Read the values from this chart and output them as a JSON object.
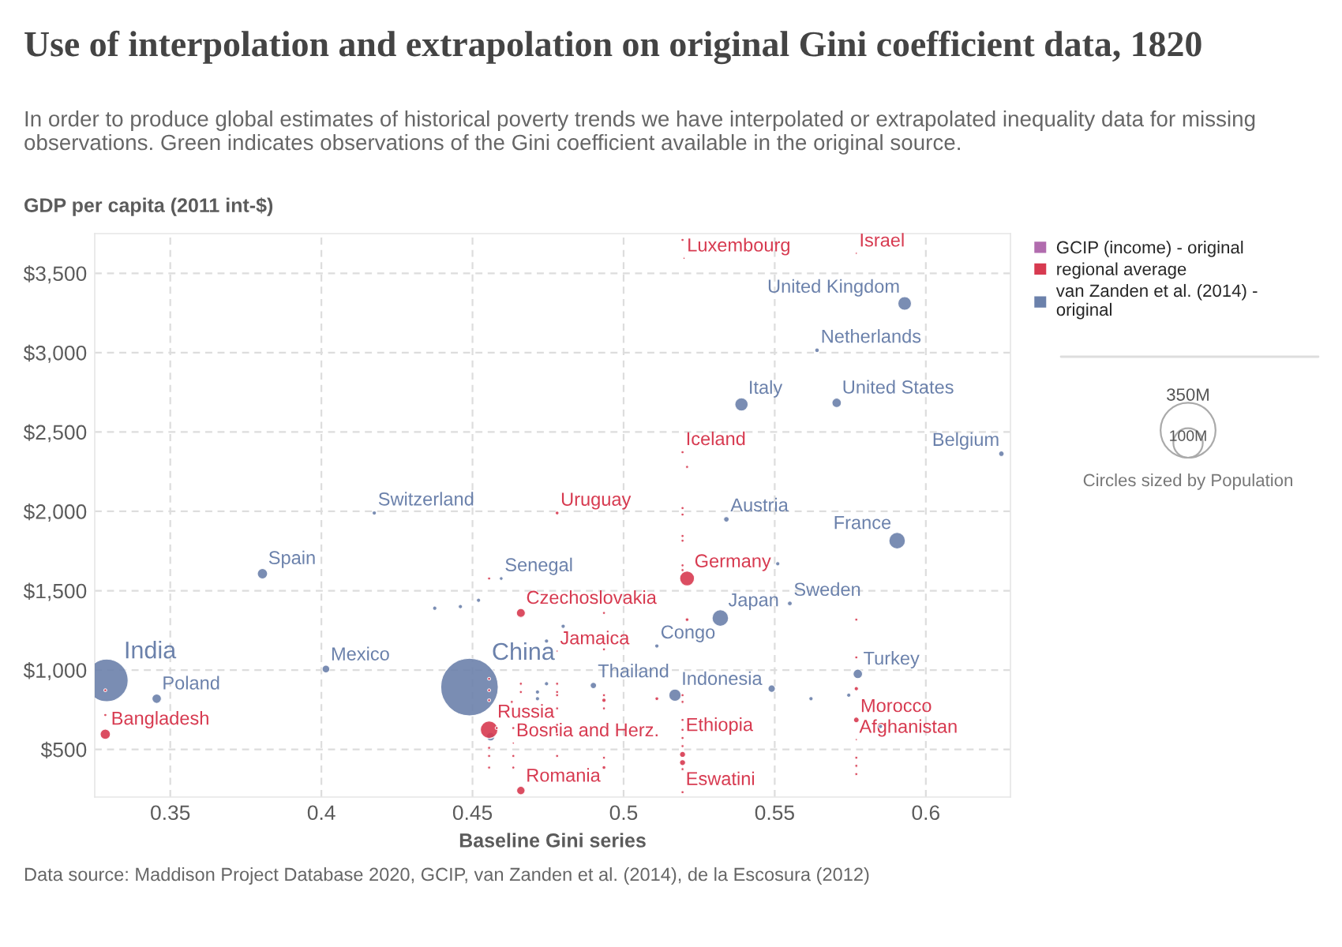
{
  "chart_data": {
    "type": "bubble",
    "title": "Use of interpolation and extrapolation on original Gini coefficient data, 1820",
    "subtitle": "In order to produce global estimates of historical poverty trends we have interpolated or extrapolated inequality data for missing observations. Green indicates observations of the Gini coefficient available in the original source.",
    "xlabel": "Baseline Gini series",
    "ylabel": "GDP per capita (2011 int-$)",
    "annotations": [
      "Circles sized by Population",
      "Data source: Maddison Project Database 2020, GCIP, van Zanden et al. (2014), de la Escosura (2012)"
    ],
    "xlim": [
      0.325,
      0.628
    ],
    "ylim": [
      200,
      3750
    ],
    "xticks": [
      0.35,
      0.4,
      0.45,
      0.5,
      0.55,
      0.6
    ],
    "yticks": [
      {
        "value": 500,
        "label": "$500"
      },
      {
        "value": 1000,
        "label": "$1,000"
      },
      {
        "value": 1500,
        "label": "$1,500"
      },
      {
        "value": 2000,
        "label": "$2,000"
      },
      {
        "value": 2500,
        "label": "$2,500"
      },
      {
        "value": 3000,
        "label": "$3,000"
      },
      {
        "value": 3500,
        "label": "$3,500"
      }
    ],
    "grid": true,
    "legend": "right",
    "size_legend": [
      {
        "value": 100,
        "label": "100M"
      },
      {
        "value": 350,
        "label": "350M"
      }
    ],
    "series": [
      {
        "name": "GCIP (income) - original",
        "color": "#b16cae"
      },
      {
        "name": "regional average",
        "color": "#d73a50",
        "x": [
          0.5195,
          0.52,
          0.577,
          0.5195,
          0.521,
          0.478,
          0.5195,
          0.5195,
          0.5195,
          0.5195,
          0.5195,
          0.5195,
          0.521,
          0.521,
          0.5195,
          0.5195,
          0.5195,
          0.5195,
          0.5195,
          0.5195,
          0.5195,
          0.5195,
          0.5195,
          0.5195,
          0.466,
          0.478,
          0.4935,
          0.4935,
          0.478,
          0.478,
          0.478,
          0.478,
          0.478,
          0.478,
          0.478,
          0.466,
          0.466,
          0.466,
          0.463,
          0.4635,
          0.4635,
          0.4635,
          0.4635,
          0.458,
          0.4935,
          0.4935,
          0.4935,
          0.4935,
          0.4935,
          0.511,
          0.577,
          0.577,
          0.577,
          0.577,
          0.577,
          0.577,
          0.577,
          0.577,
          0.3285,
          0.3285,
          0.3285,
          0.4555,
          0.4555,
          0.4555,
          0.4555,
          0.4555,
          0.4555,
          0.4555,
          0.4555
        ],
        "values": [
          3710,
          3595,
          3626,
          2373,
          2280,
          1990,
          2021,
          1980,
          1845,
          1815,
          1660,
          1630,
          1577,
          1318,
          842,
          800,
          686,
          624,
          572,
          521,
          469,
          417,
          376,
          231,
          1360,
          1120,
          1360,
          1131,
          914,
          862,
          842,
          759,
          655,
          593,
          459,
          914,
          862,
          241,
          800,
          635,
          540,
          459,
          386,
          635,
          842,
          810,
          759,
          448,
          386,
          820,
          1318,
          1080,
          883,
          686,
          562,
          448,
          397,
          345,
          873,
          717,
          596,
          1577,
          945,
          873,
          810,
          624,
          510,
          459,
          386
        ],
        "sizes": [
          1,
          0.5,
          0.5,
          1,
          1,
          1.5,
          1,
          1,
          1,
          1,
          1,
          1,
          25,
          1.5,
          1,
          1,
          1,
          1,
          1,
          1,
          4,
          4,
          1,
          1,
          9,
          0.5,
          1,
          1,
          1,
          1,
          1,
          1,
          1,
          1,
          1,
          1,
          1,
          8,
          1,
          1,
          0.5,
          1,
          1,
          1,
          1,
          2,
          1,
          1,
          1.5,
          1.5,
          1,
          1,
          2,
          3.5,
          0.5,
          1,
          1,
          1,
          1,
          1,
          12,
          1,
          1,
          1,
          1,
          35,
          1,
          1,
          1
        ],
        "value_labels": [
          null,
          "Luxembourg",
          "Israel",
          "Iceland",
          null,
          "Uruguay",
          null,
          null,
          null,
          null,
          null,
          null,
          "Germany",
          null,
          null,
          null,
          null,
          null,
          "Ethiopia",
          null,
          null,
          null,
          null,
          "Eswatini",
          "Czechoslovakia",
          "Jamaica",
          null,
          null,
          null,
          null,
          null,
          null,
          null,
          null,
          null,
          null,
          null,
          "Romania",
          null,
          null,
          "Bosnia and Herz.",
          null,
          null,
          null,
          null,
          null,
          null,
          null,
          null,
          null,
          null,
          null,
          null,
          "Morocco",
          "Afghanistan",
          null,
          null,
          null,
          null,
          null,
          "Bangladesh",
          null,
          null,
          null,
          null,
          "Russia",
          null,
          null,
          null
        ]
      },
      {
        "name": "van Zanden et al. (2014) - original",
        "color": "#6b81ab",
        "x": [
          0.4175,
          0.593,
          0.564,
          0.539,
          0.5705,
          0.625,
          0.534,
          0.5905,
          0.3805,
          0.329,
          0.3455,
          0.4015,
          0.4375,
          0.446,
          0.452,
          0.4595,
          0.449,
          0.456,
          0.551,
          0.555,
          0.532,
          0.511,
          0.48,
          0.4745,
          0.49,
          0.4745,
          0.4715,
          0.4715,
          0.517,
          0.549,
          0.562,
          0.5745,
          0.5775,
          0.585
        ],
        "values": [
          1990,
          3310,
          3015,
          2674,
          2684,
          2363,
          1950,
          1815,
          1607,
          935,
          820,
          1007,
          1390,
          1400,
          1440,
          1577,
          893,
          580,
          1670,
          1420,
          1328,
          1152,
          1276,
          1183,
          903,
          914,
          862,
          820,
          842,
          883,
          820,
          842,
          976,
          645
        ],
        "sizes": [
          2,
          21,
          2.3,
          20,
          10,
          3.4,
          3.4,
          31,
          12,
          209,
          10,
          6.6,
          2,
          2,
          2,
          1.5,
          381,
          8,
          2,
          2.5,
          31,
          2,
          2,
          2,
          4.5,
          2,
          2,
          2,
          17,
          6,
          2,
          2,
          10,
          2
        ],
        "value_labels": [
          "Switzerland",
          "United Kingdom",
          "Netherlands",
          "Italy",
          "United States",
          "Belgium",
          "Austria",
          "France",
          "Spain",
          "India",
          "Poland",
          "Mexico",
          null,
          null,
          null,
          "Senegal",
          "China",
          null,
          null,
          "Sweden",
          "Japan",
          "Congo",
          null,
          null,
          "Thailand",
          null,
          null,
          null,
          "Indonesia",
          null,
          null,
          null,
          "Turkey",
          null
        ]
      }
    ]
  }
}
